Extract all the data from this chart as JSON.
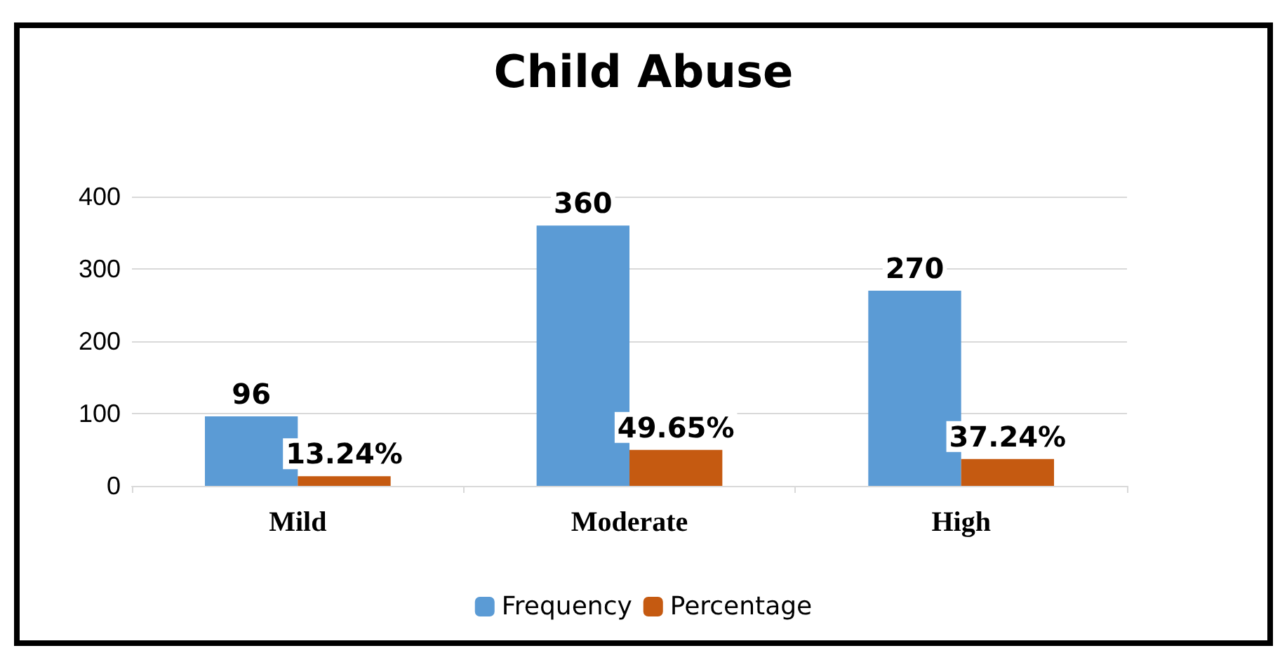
{
  "chart_data": {
    "type": "bar",
    "title": "Child Abuse",
    "categories": [
      "Mild",
      "Moderate",
      "High"
    ],
    "series": [
      {
        "name": "Frequency",
        "color": "#5b9bd5",
        "values": [
          96,
          360,
          270
        ],
        "value_labels": [
          "96",
          "360",
          "270"
        ]
      },
      {
        "name": "Percentage",
        "color": "#c55a11",
        "values": [
          13.24,
          49.65,
          37.24
        ],
        "value_labels": [
          "13.24%",
          "49.65%",
          "37.24%"
        ]
      }
    ],
    "ylim": [
      0,
      400
    ],
    "yticks": [
      0,
      100,
      200,
      300,
      400
    ],
    "grid": "y",
    "legend": "bottom"
  }
}
